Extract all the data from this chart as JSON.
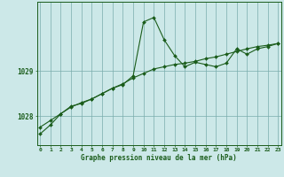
{
  "line1_x": [
    0,
    1,
    2,
    3,
    4,
    5,
    6,
    7,
    8,
    9,
    10,
    11,
    12,
    13,
    14,
    15,
    16,
    17,
    18,
    19,
    20,
    21,
    22,
    23
  ],
  "line1_y": [
    1027.75,
    1027.9,
    1028.05,
    1028.2,
    1028.3,
    1028.38,
    1028.5,
    1028.62,
    1028.72,
    1028.85,
    1028.95,
    1029.05,
    1029.1,
    1029.15,
    1029.18,
    1029.22,
    1029.28,
    1029.32,
    1029.38,
    1029.44,
    1029.5,
    1029.55,
    1029.58,
    1029.62
  ],
  "line2_x": [
    0,
    1,
    2,
    3,
    4,
    5,
    6,
    7,
    8,
    9,
    10,
    11,
    12,
    13,
    14,
    15,
    16,
    17,
    18,
    19,
    20,
    21,
    22,
    23
  ],
  "line2_y": [
    1027.6,
    1027.8,
    1028.05,
    1028.22,
    1028.28,
    1028.38,
    1028.5,
    1028.62,
    1028.7,
    1028.9,
    1030.1,
    1030.2,
    1029.7,
    1029.35,
    1029.1,
    1029.2,
    1029.15,
    1029.1,
    1029.18,
    1029.5,
    1029.38,
    1029.5,
    1029.55,
    1029.62
  ],
  "line_color": "#1a5c1a",
  "bg_color": "#cce8e8",
  "grid_color": "#7aacac",
  "axis_color": "#1a5c1a",
  "ylabel_ticks": [
    1028,
    1029
  ],
  "xlim": [
    -0.3,
    23.3
  ],
  "ylim": [
    1027.35,
    1030.55
  ],
  "xlabel": "Graphe pression niveau de la mer (hPa)",
  "tick_labels": [
    "0",
    "1",
    "2",
    "3",
    "4",
    "5",
    "6",
    "7",
    "8",
    "9",
    "10",
    "11",
    "12",
    "13",
    "14",
    "15",
    "16",
    "17",
    "18",
    "19",
    "20",
    "21",
    "22",
    "23"
  ]
}
